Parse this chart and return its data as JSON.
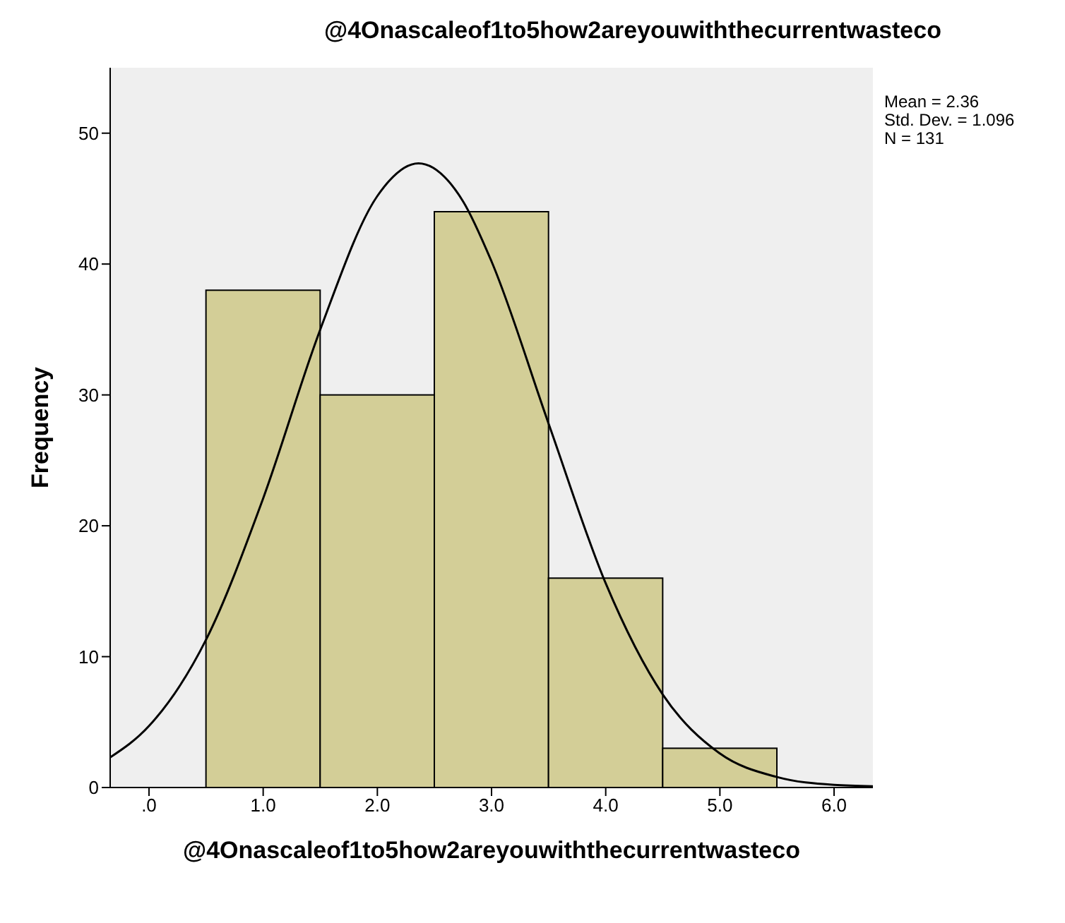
{
  "chart_data": {
    "type": "histogram",
    "title": "@4Onascaleof1to5how2areyouwiththecurrentwasteco",
    "xlabel": "@4Onascaleof1to5how2areyouwiththecurrentwasteco",
    "ylabel": "Frequency",
    "bins": [
      0.5,
      1.5,
      2.5,
      3.5,
      4.5,
      5.5
    ],
    "values": [
      38,
      30,
      44,
      16,
      3
    ],
    "color": "#d3ce97",
    "series": [
      {
        "type": "line",
        "color": "#000000",
        "x": [
          -0.34,
          0,
          0.5,
          1,
          1.5,
          2,
          2.36,
          2.75,
          3,
          3.5,
          4,
          4.5,
          5,
          5.5,
          6,
          6.34
        ],
        "values": [
          2.3,
          4.7,
          11.3,
          22.1,
          35,
          45.2,
          47.7,
          44.8,
          40.2,
          27.8,
          15.6,
          7.1,
          2.6,
          0.8,
          0.2,
          0.1
        ]
      }
    ],
    "xlim": [
      -0.34,
      6.34
    ],
    "xticks": [
      {
        "value": 0,
        "label": ".0"
      },
      {
        "value": 1,
        "label": "1.0"
      },
      {
        "value": 2,
        "label": "2.0"
      },
      {
        "value": 3,
        "label": "3.0"
      },
      {
        "value": 4,
        "label": "4.0"
      },
      {
        "value": 5,
        "label": "5.0"
      },
      {
        "value": 6,
        "label": "6.0"
      }
    ],
    "ylim": [
      0,
      55
    ],
    "yticks": [
      0,
      10,
      20,
      30,
      40,
      50
    ],
    "annotations": [
      "Mean = 2.36",
      "Std. Dev. = 1.096",
      "N = 131"
    ]
  }
}
